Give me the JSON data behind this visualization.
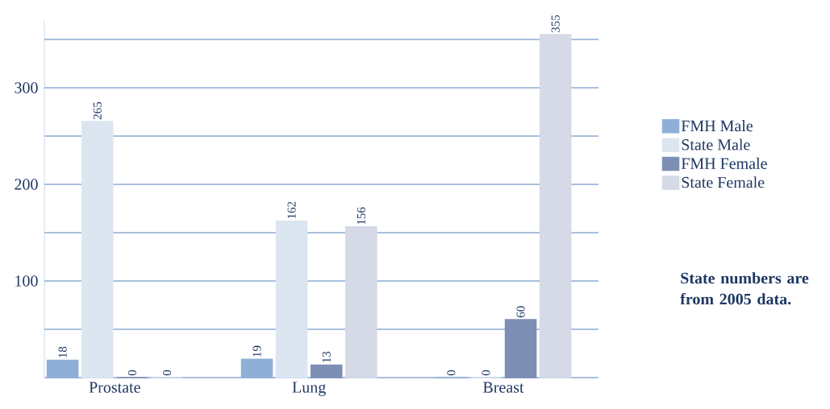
{
  "chart_data": {
    "type": "bar",
    "categories": [
      "Prostate",
      "Lung",
      "Breast"
    ],
    "series": [
      {
        "name": "FMH Male",
        "color": "#8fb0d6",
        "values": [
          18,
          19,
          0
        ]
      },
      {
        "name": "State Male",
        "color": "#dce6f1",
        "values": [
          265,
          162,
          0
        ]
      },
      {
        "name": "FMH Female",
        "color": "#7d8fb5",
        "values": [
          0,
          13,
          60
        ]
      },
      {
        "name": "State Female",
        "color": "#d5dae6",
        "values": [
          0,
          156,
          355
        ]
      }
    ],
    "ylim": [
      0,
      370
    ],
    "yticks": [
      {
        "value": 0,
        "label": null
      },
      {
        "value": 50,
        "label": null
      },
      100,
      {
        "value": 150,
        "label": null
      },
      200,
      {
        "value": 250,
        "label": null
      },
      300,
      {
        "value": 350,
        "label": null
      }
    ],
    "grid": "y",
    "legend": "right",
    "data_labels": true,
    "annotations": [
      "State numbers are from 2005 data."
    ]
  }
}
